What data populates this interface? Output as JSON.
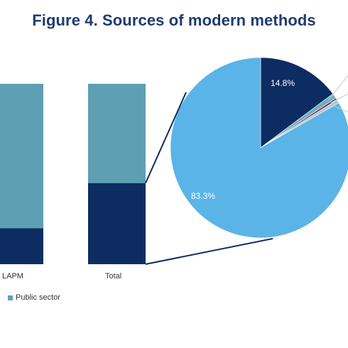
{
  "title": "Figure 4. Sources of modern methods",
  "chart_data": [
    {
      "type": "bar",
      "stacked": true,
      "categories": [
        "LAPM",
        "Total"
      ],
      "series": [
        {
          "name": "",
          "values": [
            20,
            45
          ],
          "color": "#0d2d62"
        },
        {
          "name": "Public sector",
          "values": [
            80,
            55
          ],
          "color": "#5e9fb4"
        }
      ],
      "ylim": [
        0,
        100
      ],
      "legend": "bottom-left"
    },
    {
      "type": "pie",
      "slices": [
        {
          "label": "14.8%",
          "value": 14.8,
          "color": "#0d2d62"
        },
        {
          "label": "",
          "value": 0.9,
          "color": "#6ab0c4"
        },
        {
          "label": "",
          "value": 0.4,
          "color": "#8a2452"
        },
        {
          "label": "",
          "value": 0.6,
          "color": "#a9ccd8"
        },
        {
          "label": "83.3%",
          "value": 83.3,
          "color": "#5ab4e8"
        }
      ]
    }
  ],
  "legend": {
    "item_label": "Public sector",
    "item_color": "#5e9fb4"
  }
}
